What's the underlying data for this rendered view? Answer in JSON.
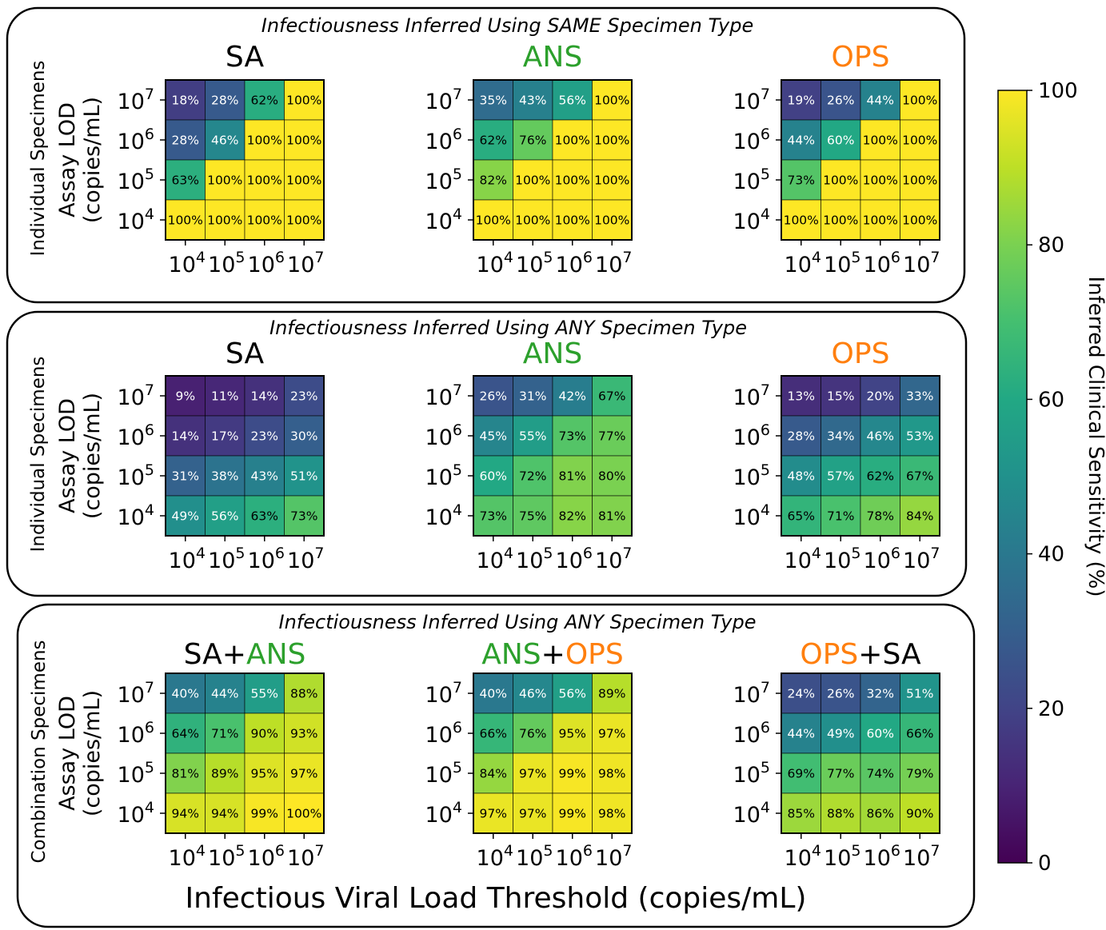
{
  "colors": {
    "SA": "#000000",
    "ANS": "#2ca02c",
    "OPS": "#ff7f0e",
    "plus": "#000000"
  },
  "axis_tick_labels": {
    "x": [
      {
        "base": "10",
        "exp": "4"
      },
      {
        "base": "10",
        "exp": "5"
      },
      {
        "base": "10",
        "exp": "6"
      },
      {
        "base": "10",
        "exp": "7"
      }
    ],
    "y": [
      {
        "base": "10",
        "exp": "7"
      },
      {
        "base": "10",
        "exp": "6"
      },
      {
        "base": "10",
        "exp": "5"
      },
      {
        "base": "10",
        "exp": "4"
      }
    ]
  },
  "xlabel": "Infectious Viral Load Threshold (copies/mL)",
  "ylabel_line1": "Assay LOD",
  "ylabel_line2": "(copies/mL)",
  "colorbar": {
    "label": "Inferred Clinical Sensitivity (%)",
    "ticks": [
      "0",
      "20",
      "40",
      "60",
      "80",
      "100"
    ],
    "tick_values": [
      0,
      20,
      40,
      60,
      80,
      100
    ],
    "range": [
      0,
      100
    ],
    "colormap": "viridis"
  },
  "chart_data": [
    {
      "type": "heatmap",
      "section": "Infectiousness Inferred Using SAME Specimen Type",
      "row_group": "Individual Specimens",
      "panels": [
        {
          "title_parts": [
            {
              "text": "SA",
              "color": "SA"
            }
          ],
          "values": [
            [
              18,
              28,
              62,
              100
            ],
            [
              28,
              46,
              100,
              100
            ],
            [
              63,
              100,
              100,
              100
            ],
            [
              100,
              100,
              100,
              100
            ]
          ]
        },
        {
          "title_parts": [
            {
              "text": "ANS",
              "color": "ANS"
            }
          ],
          "values": [
            [
              35,
              43,
              56,
              100
            ],
            [
              62,
              76,
              100,
              100
            ],
            [
              82,
              100,
              100,
              100
            ],
            [
              100,
              100,
              100,
              100
            ]
          ]
        },
        {
          "title_parts": [
            {
              "text": "OPS",
              "color": "OPS"
            }
          ],
          "values": [
            [
              19,
              26,
              44,
              100
            ],
            [
              44,
              60,
              100,
              100
            ],
            [
              73,
              100,
              100,
              100
            ],
            [
              100,
              100,
              100,
              100
            ]
          ]
        }
      ]
    },
    {
      "type": "heatmap",
      "section": "Infectiousness Inferred Using ANY Specimen Type",
      "row_group": "Individual Specimens",
      "panels": [
        {
          "title_parts": [
            {
              "text": "SA",
              "color": "SA"
            }
          ],
          "values": [
            [
              9,
              11,
              14,
              23
            ],
            [
              14,
              17,
              23,
              30
            ],
            [
              31,
              38,
              43,
              51
            ],
            [
              49,
              56,
              63,
              73
            ]
          ]
        },
        {
          "title_parts": [
            {
              "text": "ANS",
              "color": "ANS"
            }
          ],
          "values": [
            [
              26,
              31,
              42,
              67
            ],
            [
              45,
              55,
              73,
              77
            ],
            [
              60,
              72,
              81,
              80
            ],
            [
              73,
              75,
              82,
              81
            ]
          ]
        },
        {
          "title_parts": [
            {
              "text": "OPS",
              "color": "OPS"
            }
          ],
          "values": [
            [
              13,
              15,
              20,
              33
            ],
            [
              28,
              34,
              46,
              53
            ],
            [
              48,
              57,
              62,
              67
            ],
            [
              65,
              71,
              78,
              84
            ]
          ]
        }
      ]
    },
    {
      "type": "heatmap",
      "section": "Infectiousness Inferred Using ANY Specimen Type",
      "row_group": "Combination Specimens",
      "panels": [
        {
          "title_parts": [
            {
              "text": "SA",
              "color": "SA"
            },
            {
              "text": "+",
              "color": "plus"
            },
            {
              "text": "ANS",
              "color": "ANS"
            }
          ],
          "values": [
            [
              40,
              44,
              55,
              88
            ],
            [
              64,
              71,
              90,
              93
            ],
            [
              81,
              89,
              95,
              97
            ],
            [
              94,
              94,
              99,
              100
            ]
          ]
        },
        {
          "title_parts": [
            {
              "text": "ANS",
              "color": "ANS"
            },
            {
              "text": "+",
              "color": "plus"
            },
            {
              "text": "OPS",
              "color": "OPS"
            }
          ],
          "values": [
            [
              40,
              46,
              56,
              89
            ],
            [
              66,
              76,
              95,
              97
            ],
            [
              84,
              97,
              99,
              98
            ],
            [
              97,
              97,
              99,
              98
            ]
          ]
        },
        {
          "title_parts": [
            {
              "text": "OPS",
              "color": "OPS"
            },
            {
              "text": "+",
              "color": "plus"
            },
            {
              "text": "SA",
              "color": "SA"
            }
          ],
          "values": [
            [
              24,
              26,
              32,
              51
            ],
            [
              44,
              49,
              60,
              66
            ],
            [
              69,
              77,
              74,
              79
            ],
            [
              85,
              88,
              86,
              90
            ]
          ]
        }
      ]
    }
  ]
}
